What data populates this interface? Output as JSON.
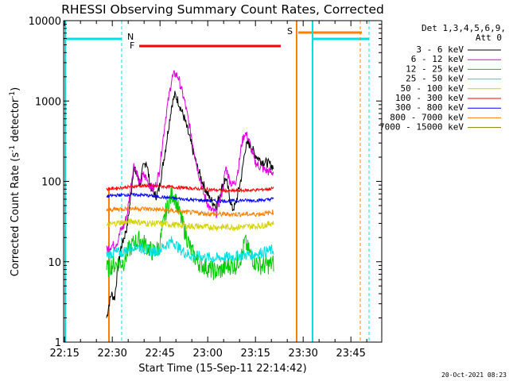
{
  "chart_data": {
    "type": "line",
    "title": "RHESSI Observing Summary Count Rates, Corrected",
    "xlabel": "Start Time (15-Sep-11 22:14:42)",
    "ylabel_main": "Corrected Count Rate (s",
    "ylabel_sup1": "-1",
    "ylabel_mid": " detector",
    "ylabel_sup2": "-1",
    "ylabel_end": ")",
    "yscale": "log",
    "ylim": [
      1,
      10000
    ],
    "xlim_min": [
      0,
      100
    ],
    "x_ticks": [
      {
        "min": 0.3,
        "label": "22:15"
      },
      {
        "min": 15.3,
        "label": "22:30"
      },
      {
        "min": 30.3,
        "label": "22:45"
      },
      {
        "min": 45.3,
        "label": "23:00"
      },
      {
        "min": 60.3,
        "label": "23:15"
      },
      {
        "min": 75.3,
        "label": "23:30"
      },
      {
        "min": 90.3,
        "label": "23:45"
      }
    ],
    "y_ticks": [
      {
        "v": 1,
        "label": "1"
      },
      {
        "v": 10,
        "label": "10"
      },
      {
        "v": 100,
        "label": "100"
      },
      {
        "v": 1000,
        "label": "1000"
      },
      {
        "v": 10000,
        "label": "10000"
      }
    ],
    "legend_header_1": "Det 1,3,4,5,6,9,",
    "legend_header_2": "Att 0",
    "series": [
      {
        "name": "3 - 6 keV",
        "color": "#000000",
        "points": [
          [
            13.5,
            2
          ],
          [
            14.3,
            3
          ],
          [
            15,
            4
          ],
          [
            16,
            3.5
          ],
          [
            17,
            8
          ],
          [
            18,
            15
          ],
          [
            19,
            20
          ],
          [
            20,
            28
          ],
          [
            21,
            60
          ],
          [
            22,
            150
          ],
          [
            23,
            120
          ],
          [
            24,
            90
          ],
          [
            25,
            150
          ],
          [
            26,
            180
          ],
          [
            27,
            100
          ],
          [
            28,
            75
          ],
          [
            29,
            65
          ],
          [
            30,
            80
          ],
          [
            32,
            250
          ],
          [
            34,
            900
          ],
          [
            35,
            1200
          ],
          [
            36,
            1000
          ],
          [
            38,
            600
          ],
          [
            40,
            300
          ],
          [
            42,
            150
          ],
          [
            44,
            90
          ],
          [
            46,
            60
          ],
          [
            48,
            50
          ],
          [
            50,
            90
          ],
          [
            51,
            110
          ],
          [
            52,
            70
          ],
          [
            53,
            45
          ],
          [
            54,
            50
          ],
          [
            56,
            120
          ],
          [
            57,
            250
          ],
          [
            58,
            300
          ],
          [
            59,
            270
          ],
          [
            60,
            220
          ],
          [
            61,
            200
          ],
          [
            62,
            180
          ],
          [
            63,
            175
          ],
          [
            64,
            170
          ],
          [
            65,
            160
          ],
          [
            66,
            150
          ]
        ]
      },
      {
        "name": "6 - 12 keV",
        "color": "#e000e0",
        "points": [
          [
            13.5,
            14
          ],
          [
            14.3,
            15
          ],
          [
            15,
            16
          ],
          [
            16,
            16
          ],
          [
            17,
            18
          ],
          [
            18,
            25
          ],
          [
            19,
            28
          ],
          [
            20,
            40
          ],
          [
            21,
            80
          ],
          [
            22,
            160
          ],
          [
            23,
            130
          ],
          [
            24,
            90
          ],
          [
            25,
            120
          ],
          [
            26,
            110
          ],
          [
            27,
            90
          ],
          [
            28,
            80
          ],
          [
            29,
            90
          ],
          [
            30,
            130
          ],
          [
            32,
            600
          ],
          [
            34,
            1900
          ],
          [
            35,
            2200
          ],
          [
            36,
            2000
          ],
          [
            38,
            1000
          ],
          [
            40,
            400
          ],
          [
            42,
            150
          ],
          [
            44,
            70
          ],
          [
            46,
            45
          ],
          [
            48,
            40
          ],
          [
            50,
            80
          ],
          [
            51,
            150
          ],
          [
            52,
            110
          ],
          [
            53,
            90
          ],
          [
            54,
            100
          ],
          [
            55,
            150
          ],
          [
            56,
            300
          ],
          [
            57,
            400
          ],
          [
            58,
            350
          ],
          [
            59,
            250
          ],
          [
            60,
            180
          ],
          [
            61,
            160
          ],
          [
            62,
            150
          ],
          [
            63,
            140
          ],
          [
            64,
            135
          ],
          [
            65,
            130
          ],
          [
            66,
            130
          ]
        ]
      },
      {
        "name": "12 - 25 keV",
        "color": "#00cc00",
        "points": [
          [
            13.5,
            8
          ],
          [
            15,
            9
          ],
          [
            17,
            9.5
          ],
          [
            19,
            10
          ],
          [
            20,
            13
          ],
          [
            22,
            17
          ],
          [
            24,
            19
          ],
          [
            26,
            16
          ],
          [
            28,
            13
          ],
          [
            30,
            15
          ],
          [
            32,
            40
          ],
          [
            34,
            70
          ],
          [
            35,
            65
          ],
          [
            36,
            45
          ],
          [
            38,
            25
          ],
          [
            40,
            14
          ],
          [
            42,
            10
          ],
          [
            44,
            9
          ],
          [
            46,
            8
          ],
          [
            48,
            7.5
          ],
          [
            50,
            8
          ],
          [
            52,
            9
          ],
          [
            54,
            9
          ],
          [
            56,
            12
          ],
          [
            57,
            18
          ],
          [
            58,
            14
          ],
          [
            60,
            10
          ],
          [
            62,
            9
          ],
          [
            64,
            9
          ],
          [
            66,
            9.5
          ]
        ]
      },
      {
        "name": "25 - 50 keV",
        "color": "#00e0e0",
        "points": [
          [
            13.5,
            12
          ],
          [
            16,
            13
          ],
          [
            18,
            13
          ],
          [
            20,
            14
          ],
          [
            22,
            16
          ],
          [
            24,
            15
          ],
          [
            26,
            14
          ],
          [
            28,
            13.5
          ],
          [
            30,
            14
          ],
          [
            32,
            16
          ],
          [
            34,
            18
          ],
          [
            35,
            17
          ],
          [
            36,
            15
          ],
          [
            38,
            13
          ],
          [
            40,
            12
          ],
          [
            44,
            11.5
          ],
          [
            48,
            11
          ],
          [
            52,
            11.5
          ],
          [
            56,
            12
          ],
          [
            60,
            12.5
          ],
          [
            64,
            13.5
          ],
          [
            66,
            14
          ]
        ]
      },
      {
        "name": "50 - 100 keV",
        "color": "#d4d400",
        "points": [
          [
            13.5,
            28
          ],
          [
            16,
            30
          ],
          [
            18,
            31
          ],
          [
            20,
            31
          ],
          [
            22,
            32
          ],
          [
            24,
            31
          ],
          [
            26,
            30
          ],
          [
            28,
            30
          ],
          [
            30,
            30
          ],
          [
            34,
            29
          ],
          [
            38,
            28
          ],
          [
            42,
            27.5
          ],
          [
            46,
            27
          ],
          [
            50,
            27
          ],
          [
            54,
            27
          ],
          [
            58,
            27.5
          ],
          [
            62,
            28
          ],
          [
            64,
            29
          ],
          [
            66,
            31
          ]
        ]
      },
      {
        "name": "100 - 300 keV",
        "color": "#ff0000",
        "points": [
          [
            13.5,
            80
          ],
          [
            16,
            82
          ],
          [
            20,
            85
          ],
          [
            24,
            88
          ],
          [
            28,
            88
          ],
          [
            32,
            86
          ],
          [
            36,
            84
          ],
          [
            40,
            82
          ],
          [
            44,
            80
          ],
          [
            48,
            78
          ],
          [
            52,
            76
          ],
          [
            56,
            77
          ],
          [
            60,
            78
          ],
          [
            64,
            80
          ],
          [
            66,
            82
          ]
        ]
      },
      {
        "name": "300 - 800 keV",
        "color": "#0000ff",
        "points": [
          [
            13.5,
            65
          ],
          [
            16,
            67
          ],
          [
            20,
            68
          ],
          [
            24,
            68
          ],
          [
            28,
            66
          ],
          [
            32,
            63
          ],
          [
            36,
            61
          ],
          [
            40,
            59
          ],
          [
            44,
            58
          ],
          [
            48,
            57
          ],
          [
            52,
            57
          ],
          [
            56,
            58
          ],
          [
            60,
            58
          ],
          [
            64,
            59
          ],
          [
            66,
            61
          ]
        ]
      },
      {
        "name": "800 - 7000 keV",
        "color": "#ff8000",
        "points": [
          [
            13.5,
            44
          ],
          [
            16,
            45
          ],
          [
            20,
            46
          ],
          [
            24,
            46
          ],
          [
            28,
            45
          ],
          [
            32,
            44
          ],
          [
            36,
            42
          ],
          [
            40,
            41
          ],
          [
            44,
            40
          ],
          [
            48,
            39
          ],
          [
            52,
            39
          ],
          [
            56,
            39
          ],
          [
            60,
            39
          ],
          [
            64,
            40
          ],
          [
            66,
            42
          ]
        ]
      },
      {
        "name": "7000 - 15000 keV",
        "color": "#808000",
        "points": []
      }
    ],
    "flags": [
      {
        "label": "N",
        "color": "#00e0e0"
      },
      {
        "label": "F",
        "color": "#ff0000"
      },
      {
        "label": "S",
        "color": "#ff8000"
      }
    ],
    "timestamp": "20-Oct-2021 08:23"
  }
}
